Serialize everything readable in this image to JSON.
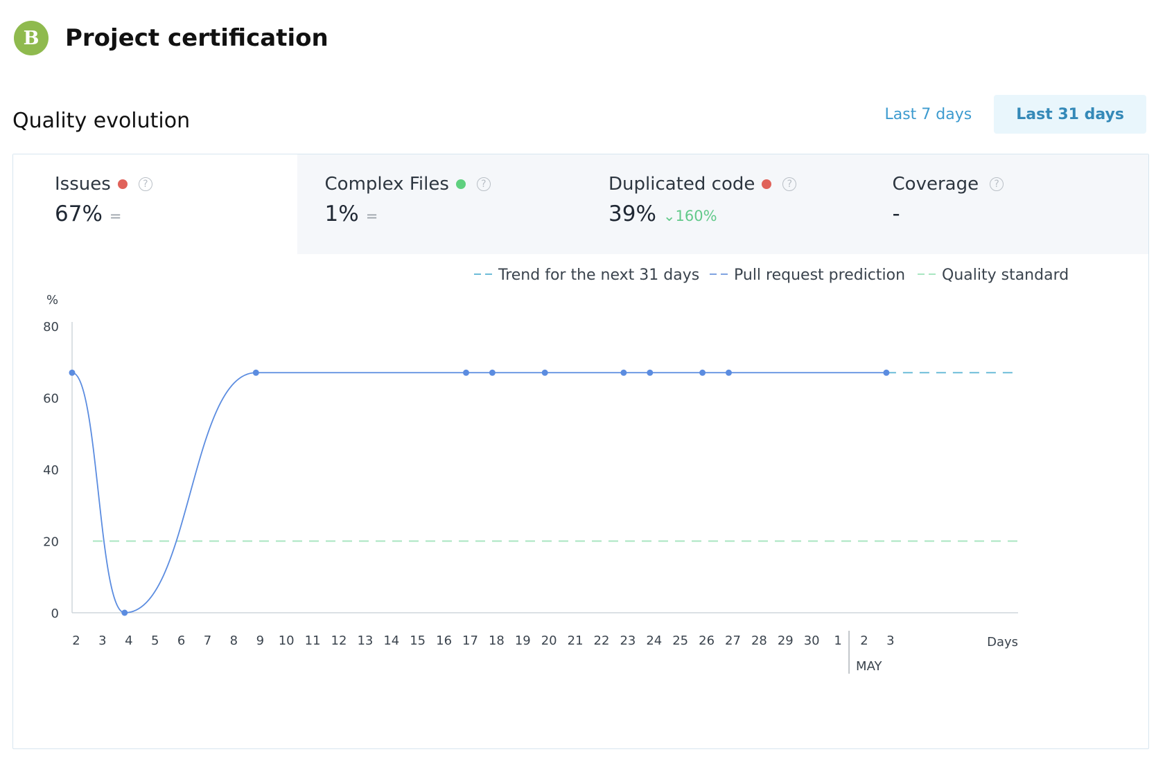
{
  "header": {
    "grade": "B",
    "title": "Project certification"
  },
  "section": {
    "title": "Quality evolution"
  },
  "range_tabs": {
    "last7": "Last 7 days",
    "last31": "Last 31 days",
    "active": "last31"
  },
  "metrics": [
    {
      "label": "Issues",
      "status_color": "#e0625a",
      "value": "67%",
      "trend": "="
    },
    {
      "label": "Complex Files",
      "status_color": "#5fd07f",
      "value": "1%",
      "trend": "="
    },
    {
      "label": "Duplicated code",
      "status_color": "#e0625a",
      "value": "39%",
      "trend": "⌄160%"
    },
    {
      "label": "Coverage",
      "status_color": "",
      "value": "-",
      "trend": ""
    }
  ],
  "legend": [
    {
      "label": "Trend for the next 31 days",
      "color": "#6cbcd8"
    },
    {
      "label": "Pull request prediction",
      "color": "#7fa2e0"
    },
    {
      "label": "Quality standard",
      "color": "#a8e6c1"
    }
  ],
  "chart_data": {
    "type": "line",
    "ylabel": "%",
    "xlabel": "Days",
    "ylim": [
      0,
      80
    ],
    "yticks": [
      0,
      20,
      40,
      60,
      80
    ],
    "x_ticks": [
      "2",
      "3",
      "4",
      "5",
      "6",
      "7",
      "8",
      "9",
      "10",
      "11",
      "12",
      "13",
      "14",
      "15",
      "16",
      "17",
      "18",
      "19",
      "20",
      "21",
      "22",
      "23",
      "24",
      "25",
      "26",
      "27",
      "28",
      "29",
      "30",
      "1",
      "2",
      "3"
    ],
    "month_marker": {
      "label": "MAY",
      "before_tick": 29
    },
    "series": [
      {
        "name": "",
        "color": "#5b8ce0",
        "points": [
          {
            "x": 0,
            "y": 67
          },
          {
            "x": 2,
            "y": 0
          },
          {
            "x": 7,
            "y": 67
          },
          {
            "x": 15,
            "y": 67
          },
          {
            "x": 16,
            "y": 67
          },
          {
            "x": 18,
            "y": 67
          },
          {
            "x": 21,
            "y": 67
          },
          {
            "x": 22,
            "y": 67
          },
          {
            "x": 24,
            "y": 67
          },
          {
            "x": 25,
            "y": 67
          },
          {
            "x": 31,
            "y": 67
          }
        ]
      }
    ],
    "trend": {
      "color": "#6cbcd8",
      "from_x": 31,
      "to_x": 36,
      "y": 67
    },
    "quality_standard": {
      "y": 20,
      "color": "#a8e6c1"
    }
  }
}
